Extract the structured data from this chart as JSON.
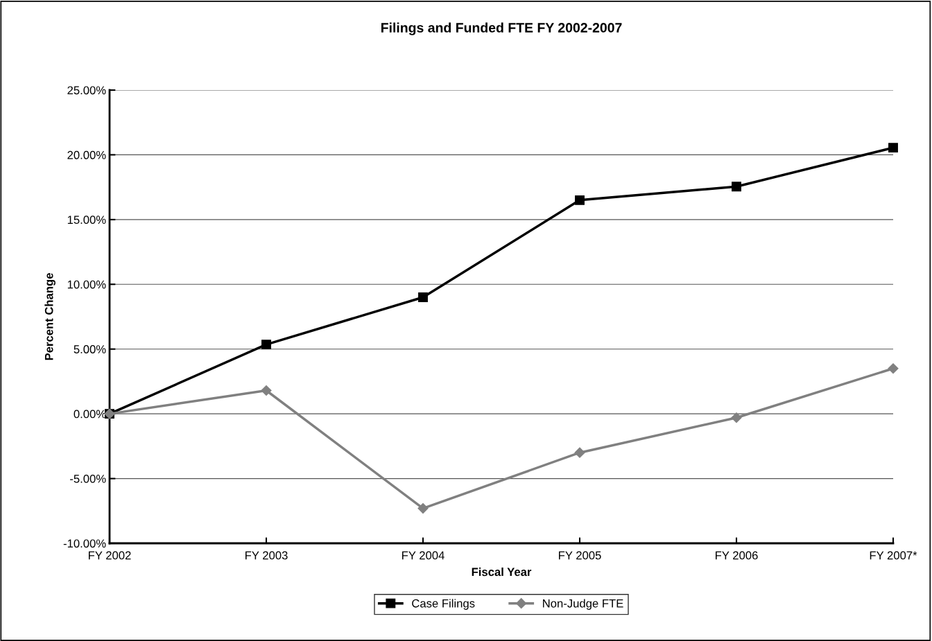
{
  "chart_data": {
    "type": "line",
    "title": "Filings and Funded FTE FY 2002-2007",
    "xlabel": "Fiscal Year",
    "ylabel": "Percent Change",
    "categories": [
      "FY 2002",
      "FY 2003",
      "FY 2004",
      "FY 2005",
      "FY 2006",
      "FY 2007*"
    ],
    "series": [
      {
        "name": "Case Filings",
        "color": "#000000",
        "marker": "square",
        "values": [
          0,
          5.35,
          9.0,
          16.5,
          17.55,
          20.55
        ]
      },
      {
        "name": "Non-Judge FTE",
        "color": "#808080",
        "marker": "diamond",
        "values": [
          0,
          1.8,
          -7.3,
          -3.0,
          -0.3,
          3.5
        ]
      }
    ],
    "ylim": [
      -10,
      25
    ],
    "yticks": [
      {
        "value": -10,
        "label": "-10.00%"
      },
      {
        "value": -5,
        "label": "-5.00%"
      },
      {
        "value": 0,
        "label": "0.00%"
      },
      {
        "value": 5,
        "label": "5.00%"
      },
      {
        "value": 10,
        "label": "10.00%"
      },
      {
        "value": 15,
        "label": "15.00%"
      },
      {
        "value": 20,
        "label": "20.00%"
      },
      {
        "value": 25,
        "label": "25.00%"
      }
    ],
    "grid": "y",
    "legend": "bottom",
    "line_style": "solid"
  }
}
